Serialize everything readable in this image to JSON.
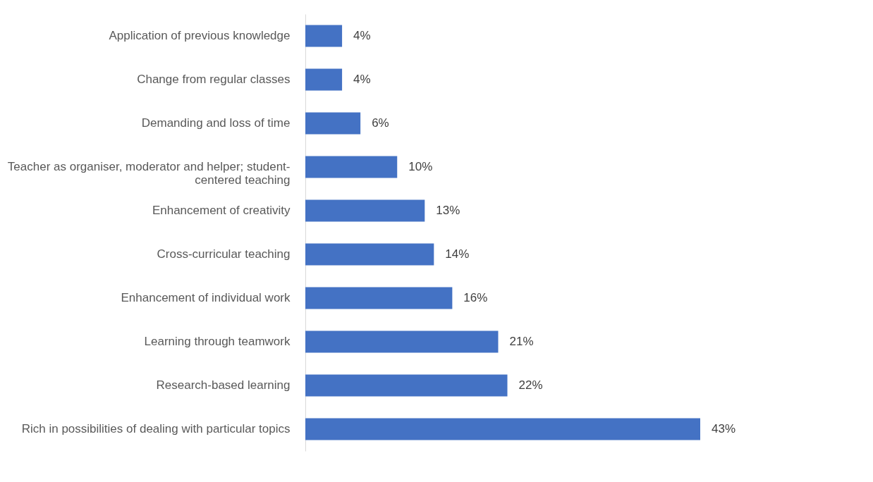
{
  "chart_data": {
    "type": "bar",
    "orientation": "horizontal",
    "data_labels": true,
    "categories": [
      "Application of previous knowledge",
      "Change from regular classes",
      "Demanding and loss of time",
      "Teacher as organiser, moderator and helper; student-\ncentered teaching",
      "Enhancement of creativity",
      "Cross-curricular teaching",
      "Enhancement of individual work",
      "Learning through teamwork",
      "Research-based learning",
      "Rich in possibilities of dealing with particular topics"
    ],
    "values": [
      4,
      4,
      6,
      10,
      13,
      14,
      16,
      21,
      22,
      43
    ],
    "value_labels": [
      "4%",
      "4%",
      "6%",
      "10%",
      "13%",
      "14%",
      "16%",
      "21%",
      "22%",
      "43%"
    ],
    "color": "#4472c4"
  }
}
